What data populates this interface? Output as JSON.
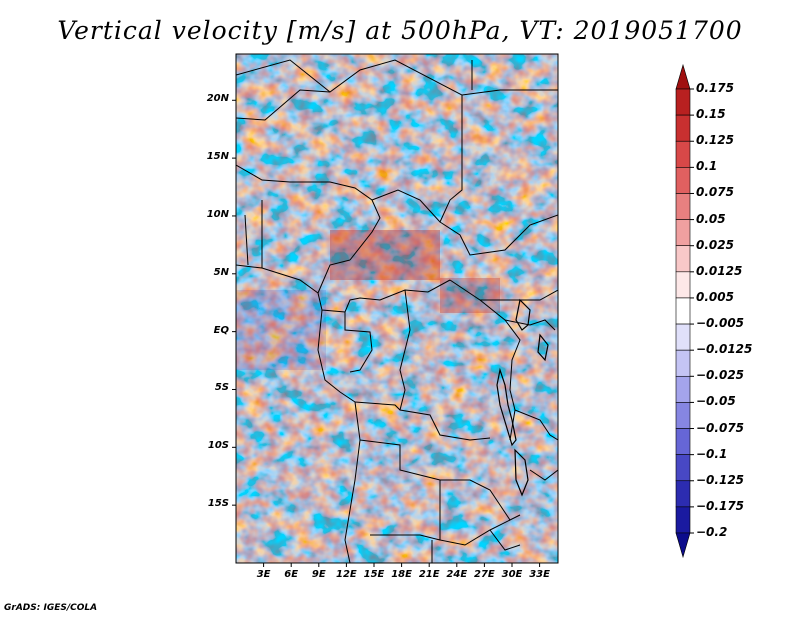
{
  "title": "Vertical velocity [m/s] at 500hPa, VT: 2019051700",
  "footer": "GrADS: IGES/COLA",
  "map": {
    "lon_range": [
      0,
      35
    ],
    "lat_range": [
      -20,
      24
    ],
    "lat_ticks": [
      {
        "value": 20,
        "label": "20N"
      },
      {
        "value": 15,
        "label": "15N"
      },
      {
        "value": 10,
        "label": "10N"
      },
      {
        "value": 5,
        "label": "5N"
      },
      {
        "value": 0,
        "label": "EQ"
      },
      {
        "value": -5,
        "label": "5S"
      },
      {
        "value": -10,
        "label": "10S"
      },
      {
        "value": -15,
        "label": "15S"
      }
    ],
    "lon_ticks": [
      {
        "value": 3,
        "label": "3E"
      },
      {
        "value": 6,
        "label": "6E"
      },
      {
        "value": 9,
        "label": "9E"
      },
      {
        "value": 12,
        "label": "12E"
      },
      {
        "value": 15,
        "label": "15E"
      },
      {
        "value": 18,
        "label": "18E"
      },
      {
        "value": 21,
        "label": "21E"
      },
      {
        "value": 24,
        "label": "24E"
      },
      {
        "value": 27,
        "label": "27E"
      },
      {
        "value": 30,
        "label": "30E"
      },
      {
        "value": 33,
        "label": "33E"
      }
    ]
  },
  "colorbar": {
    "levels": [
      "0.175",
      "0.15",
      "0.125",
      "0.1",
      "0.075",
      "0.05",
      "0.025",
      "0.0125",
      "0.005",
      "-0.005",
      "-0.0125",
      "-0.025",
      "-0.05",
      "-0.075",
      "-0.1",
      "-0.125",
      "-0.175",
      "-0.2"
    ],
    "colors": [
      "#a01010",
      "#b82020",
      "#c83030",
      "#d84848",
      "#e06060",
      "#e88080",
      "#f0a0a0",
      "#f8c8c8",
      "#fde8e8",
      "#ffffff",
      "#e0e0fa",
      "#c4c4f4",
      "#a4a4ec",
      "#8686e2",
      "#6666d6",
      "#4848c4",
      "#2c2cb0",
      "#1a1aa0",
      "#0c0c8c"
    ]
  }
}
